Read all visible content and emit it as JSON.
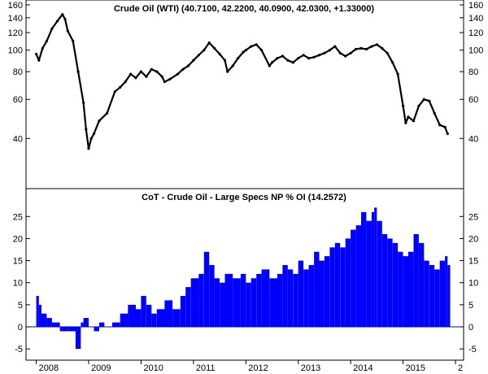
{
  "chart_data": [
    {
      "type": "line",
      "title": "Crude Oil (WTI) (40.7100, 42.2200, 40.0900, 42.0300, +1.33000)",
      "scale": "log",
      "color": "#000000",
      "ylim": [
        25,
        160
      ],
      "y_ticks": [
        "40",
        "60",
        "80",
        "100",
        "120",
        "140",
        "160"
      ],
      "x": [
        2008.0,
        2008.05,
        2008.12,
        2008.2,
        2008.3,
        2008.4,
        2008.5,
        2008.55,
        2008.6,
        2008.7,
        2008.8,
        2008.9,
        2008.95,
        2009.0,
        2009.05,
        2009.1,
        2009.2,
        2009.35,
        2009.5,
        2009.6,
        2009.7,
        2009.8,
        2009.9,
        2010.0,
        2010.1,
        2010.2,
        2010.3,
        2010.4,
        2010.45,
        2010.55,
        2010.7,
        2010.8,
        2010.9,
        2011.0,
        2011.1,
        2011.2,
        2011.3,
        2011.4,
        2011.5,
        2011.6,
        2011.65,
        2011.75,
        2011.85,
        2011.95,
        2012.0,
        2012.1,
        2012.2,
        2012.3,
        2012.45,
        2012.5,
        2012.6,
        2012.7,
        2012.8,
        2012.9,
        2013.0,
        2013.1,
        2013.2,
        2013.3,
        2013.4,
        2013.5,
        2013.6,
        2013.7,
        2013.8,
        2013.9,
        2014.0,
        2014.1,
        2014.2,
        2014.3,
        2014.4,
        2014.5,
        2014.6,
        2014.7,
        2014.8,
        2014.9,
        2015.0,
        2015.05,
        2015.1,
        2015.2,
        2015.3,
        2015.4,
        2015.5,
        2015.6,
        2015.7,
        2015.8,
        2015.85
      ],
      "values": [
        96,
        90,
        102,
        110,
        125,
        135,
        145,
        138,
        122,
        110,
        80,
        58,
        44,
        36,
        40,
        42,
        48,
        52,
        65,
        68,
        72,
        78,
        75,
        80,
        76,
        82,
        80,
        76,
        72,
        74,
        78,
        82,
        85,
        90,
        95,
        100,
        108,
        102,
        96,
        90,
        80,
        85,
        92,
        98,
        100,
        104,
        106,
        100,
        85,
        88,
        92,
        94,
        90,
        88,
        92,
        95,
        92,
        93,
        95,
        97,
        100,
        104,
        97,
        94,
        97,
        101,
        102,
        101,
        104,
        106,
        102,
        97,
        88,
        78,
        56,
        47,
        50,
        48,
        56,
        60,
        59,
        52,
        46,
        45,
        42
      ]
    },
    {
      "type": "bar",
      "title": "CoT - Crude Oil - Large Specs NP % OI (14.2572)",
      "color": "#0000ff",
      "ylim": [
        -7,
        28
      ],
      "y_ticks": [
        "-5",
        "0",
        "5",
        "10",
        "15",
        "20",
        "25"
      ],
      "x_ticks": [
        "2008",
        "2009",
        "2010",
        "2011",
        "2012",
        "2013",
        "2014",
        "2015",
        "2"
      ],
      "x": [
        2008.0,
        2008.05,
        2008.1,
        2008.2,
        2008.3,
        2008.45,
        2008.6,
        2008.75,
        2008.85,
        2008.9,
        2009.0,
        2009.1,
        2009.2,
        2009.3,
        2009.45,
        2009.6,
        2009.75,
        2009.9,
        2010.0,
        2010.1,
        2010.2,
        2010.3,
        2010.45,
        2010.6,
        2010.75,
        2010.85,
        2010.95,
        2011.1,
        2011.2,
        2011.3,
        2011.4,
        2011.5,
        2011.6,
        2011.75,
        2011.9,
        2012.0,
        2012.1,
        2012.2,
        2012.3,
        2012.45,
        2012.6,
        2012.7,
        2012.8,
        2012.9,
        2013.0,
        2013.1,
        2013.2,
        2013.3,
        2013.4,
        2013.5,
        2013.6,
        2013.7,
        2013.8,
        2013.9,
        2014.0,
        2014.1,
        2014.2,
        2014.3,
        2014.4,
        2014.45,
        2014.5,
        2014.6,
        2014.7,
        2014.8,
        2014.9,
        2015.0,
        2015.1,
        2015.2,
        2015.3,
        2015.4,
        2015.5,
        2015.6,
        2015.7,
        2015.8,
        2015.85
      ],
      "values": [
        7,
        5,
        3,
        2,
        1,
        -1,
        -1,
        -5,
        1,
        2,
        0,
        -1,
        1,
        0,
        1,
        3,
        5,
        4,
        7,
        5,
        3,
        4,
        6,
        4,
        7,
        9,
        11,
        12,
        17,
        14,
        11,
        10,
        12,
        11,
        12,
        10,
        11,
        12,
        13,
        11,
        12,
        14,
        13,
        12,
        15,
        13,
        14,
        17,
        15,
        16,
        18,
        19,
        18,
        20,
        22,
        23,
        26,
        24,
        26,
        27,
        24,
        21,
        20,
        19,
        17,
        16,
        17,
        21,
        19,
        15,
        14,
        13,
        15,
        16,
        14
      ]
    }
  ]
}
